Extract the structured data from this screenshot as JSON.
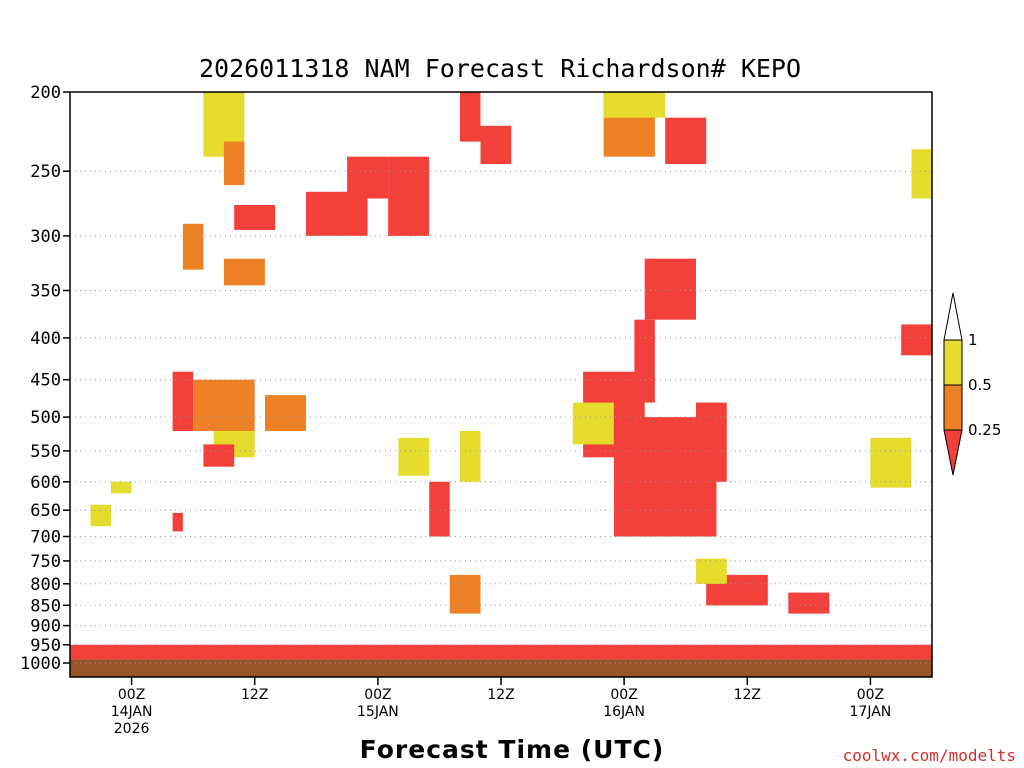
{
  "chart_data": {
    "type": "heatmap",
    "title": "2026011318 NAM Forecast Richardson# KEPO",
    "xlabel": "Forecast Time (UTC)",
    "ylabel": "",
    "x_unit": "forecast hour from 2026-01-13 18Z",
    "xlim": [
      0,
      84
    ],
    "y_scale": "log-pressure (inverted)",
    "ylim": [
      1000,
      200
    ],
    "grid": "dotted horizontal lines at labeled pressure levels",
    "legend_placement": "right",
    "y_ticks": [
      200,
      250,
      300,
      350,
      400,
      450,
      500,
      550,
      600,
      650,
      700,
      750,
      800,
      850,
      900,
      950,
      1000
    ],
    "y_tick_labels": [
      "200",
      "250",
      "300",
      "350",
      "400",
      "450",
      "500",
      "550",
      "600",
      "650",
      "700",
      "750",
      "800",
      "850",
      "900",
      "950",
      "1000"
    ],
    "x_ticks": [
      {
        "hour": 6,
        "labels": [
          "00Z",
          "14JAN",
          "2026"
        ]
      },
      {
        "hour": 18,
        "labels": [
          "12Z"
        ]
      },
      {
        "hour": 30,
        "labels": [
          "00Z",
          "15JAN"
        ]
      },
      {
        "hour": 42,
        "labels": [
          "12Z"
        ]
      },
      {
        "hour": 54,
        "labels": [
          "00Z",
          "16JAN"
        ]
      },
      {
        "hour": 66,
        "labels": [
          "12Z"
        ]
      },
      {
        "hour": 78,
        "labels": [
          "00Z",
          "17JAN"
        ]
      }
    ],
    "color_bins": [
      {
        "range": "< 0.25",
        "color": "#f2403a"
      },
      {
        "range": "0.25 - 0.5",
        "color": "#ee8126"
      },
      {
        "range": "0.5 - 1",
        "color": "#e6dc2e"
      },
      {
        "range": "> 1",
        "color": "#ffffff"
      }
    ],
    "legend_labels": [
      "1",
      "0.5",
      "0.25"
    ],
    "ground_color": "#99552a",
    "series": [
      {
        "hour_start": 0,
        "hour_end": 84,
        "p_top": 990,
        "p_bottom": 1000,
        "category": "ground"
      },
      {
        "hour_start": 0,
        "hour_end": 84,
        "p_top": 950,
        "p_bottom": 990,
        "category": "lt_0.25"
      },
      {
        "hour_start": 13,
        "hour_end": 17,
        "p_top": 200,
        "p_bottom": 240,
        "category": "0.5_1"
      },
      {
        "hour_start": 15,
        "hour_end": 17,
        "p_top": 230,
        "p_bottom": 260,
        "category": "0.25_0.5"
      },
      {
        "hour_start": 16,
        "hour_end": 20,
        "p_top": 275,
        "p_bottom": 295,
        "category": "lt_0.25"
      },
      {
        "hour_start": 15,
        "hour_end": 19,
        "p_top": 320,
        "p_bottom": 345,
        "category": "0.25_0.5"
      },
      {
        "hour_start": 11,
        "hour_end": 13,
        "p_top": 290,
        "p_bottom": 330,
        "category": "0.25_0.5"
      },
      {
        "hour_start": 23,
        "hour_end": 29,
        "p_top": 265,
        "p_bottom": 300,
        "category": "lt_0.25"
      },
      {
        "hour_start": 27,
        "hour_end": 31,
        "p_top": 240,
        "p_bottom": 270,
        "category": "lt_0.25"
      },
      {
        "hour_start": 31,
        "hour_end": 35,
        "p_top": 240,
        "p_bottom": 300,
        "category": "lt_0.25"
      },
      {
        "hour_start": 38,
        "hour_end": 40,
        "p_top": 200,
        "p_bottom": 230,
        "category": "lt_0.25"
      },
      {
        "hour_start": 40,
        "hour_end": 43,
        "p_top": 220,
        "p_bottom": 245,
        "category": "lt_0.25"
      },
      {
        "hour_start": 52,
        "hour_end": 57,
        "p_top": 200,
        "p_bottom": 240,
        "category": "0.25_0.5"
      },
      {
        "hour_start": 52,
        "hour_end": 58,
        "p_top": 200,
        "p_bottom": 215,
        "category": "0.5_1"
      },
      {
        "hour_start": 58,
        "hour_end": 62,
        "p_top": 215,
        "p_bottom": 245,
        "category": "lt_0.25"
      },
      {
        "hour_start": 56,
        "hour_end": 61,
        "p_top": 320,
        "p_bottom": 380,
        "category": "lt_0.25"
      },
      {
        "hour_start": 55,
        "hour_end": 57,
        "p_top": 380,
        "p_bottom": 480,
        "category": "lt_0.25"
      },
      {
        "hour_start": 50,
        "hour_end": 56,
        "p_top": 440,
        "p_bottom": 560,
        "category": "lt_0.25"
      },
      {
        "hour_start": 53,
        "hour_end": 63,
        "p_top": 500,
        "p_bottom": 700,
        "category": "lt_0.25"
      },
      {
        "hour_start": 61,
        "hour_end": 64,
        "p_top": 480,
        "p_bottom": 600,
        "category": "lt_0.25"
      },
      {
        "hour_start": 49,
        "hour_end": 53,
        "p_top": 480,
        "p_bottom": 540,
        "category": "0.5_1"
      },
      {
        "hour_start": 12,
        "hour_end": 18,
        "p_top": 450,
        "p_bottom": 520,
        "category": "0.25_0.5"
      },
      {
        "hour_start": 10,
        "hour_end": 12,
        "p_top": 440,
        "p_bottom": 520,
        "category": "lt_0.25"
      },
      {
        "hour_start": 14,
        "hour_end": 18,
        "p_top": 520,
        "p_bottom": 560,
        "category": "0.5_1"
      },
      {
        "hour_start": 13,
        "hour_end": 16,
        "p_top": 540,
        "p_bottom": 575,
        "category": "lt_0.25"
      },
      {
        "hour_start": 19,
        "hour_end": 23,
        "p_top": 470,
        "p_bottom": 520,
        "category": "0.25_0.5"
      },
      {
        "hour_start": 32,
        "hour_end": 35,
        "p_top": 530,
        "p_bottom": 590,
        "category": "0.5_1"
      },
      {
        "hour_start": 35,
        "hour_end": 37,
        "p_top": 600,
        "p_bottom": 700,
        "category": "lt_0.25"
      },
      {
        "hour_start": 38,
        "hour_end": 40,
        "p_top": 520,
        "p_bottom": 600,
        "category": "0.5_1"
      },
      {
        "hour_start": 37,
        "hour_end": 40,
        "p_top": 780,
        "p_bottom": 870,
        "category": "0.25_0.5"
      },
      {
        "hour_start": 62,
        "hour_end": 68,
        "p_top": 780,
        "p_bottom": 850,
        "category": "lt_0.25"
      },
      {
        "hour_start": 70,
        "hour_end": 74,
        "p_top": 820,
        "p_bottom": 870,
        "category": "lt_0.25"
      },
      {
        "hour_start": 61,
        "hour_end": 64,
        "p_top": 745,
        "p_bottom": 800,
        "category": "0.5_1"
      },
      {
        "hour_start": 78,
        "hour_end": 82,
        "p_top": 530,
        "p_bottom": 610,
        "category": "0.5_1"
      },
      {
        "hour_start": 81,
        "hour_end": 84,
        "p_top": 385,
        "p_bottom": 420,
        "category": "lt_0.25"
      },
      {
        "hour_start": 82,
        "hour_end": 84,
        "p_top": 235,
        "p_bottom": 270,
        "category": "0.5_1"
      },
      {
        "hour_start": 2,
        "hour_end": 4,
        "p_top": 640,
        "p_bottom": 680,
        "category": "0.5_1"
      },
      {
        "hour_start": 4,
        "hour_end": 6,
        "p_top": 600,
        "p_bottom": 620,
        "category": "0.5_1"
      },
      {
        "hour_start": 10,
        "hour_end": 11,
        "p_top": 655,
        "p_bottom": 690,
        "category": "lt_0.25"
      }
    ]
  },
  "credit": "coolwx.com/modelts"
}
